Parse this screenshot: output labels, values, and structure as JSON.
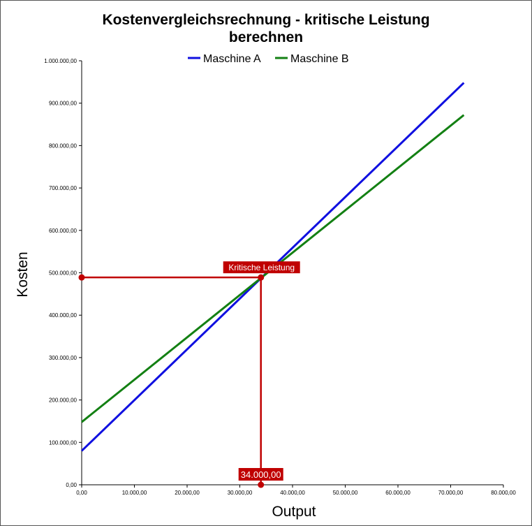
{
  "chart_data": {
    "type": "line",
    "title_line1": "Kostenvergleichsrechnung - kritische Leistung",
    "title_line2": "berechnen",
    "xlabel": "Output",
    "ylabel": "Kosten",
    "xlim": [
      0,
      80000
    ],
    "ylim": [
      0,
      1000000
    ],
    "x_ticks": [
      0,
      10000,
      20000,
      30000,
      40000,
      50000,
      60000,
      70000,
      80000
    ],
    "y_ticks": [
      0,
      100000,
      200000,
      300000,
      400000,
      500000,
      600000,
      700000,
      800000,
      900000,
      1000000
    ],
    "x_tick_labels": [
      "0,00",
      "10.000,00",
      "20.000,00",
      "30.000,00",
      "40.000,00",
      "50.000,00",
      "60.000,00",
      "70.000,00",
      "80.000,00"
    ],
    "y_tick_labels": [
      "0,00",
      "100.000,00",
      "200.000,00",
      "300.000,00",
      "400.000,00",
      "500.000,00",
      "600.000,00",
      "700.000,00",
      "800.000,00",
      "900.000,00",
      "1.000.000,00"
    ],
    "grid": false,
    "legend": "top-center",
    "series": [
      {
        "name": "Maschine A",
        "color": "#1010e0",
        "x": [
          0,
          72500
        ],
        "y": [
          80000,
          948000
        ]
      },
      {
        "name": "Maschine B",
        "color": "#138013",
        "x": [
          0,
          72500
        ],
        "y": [
          148000,
          872000
        ]
      }
    ],
    "annotation": {
      "color": "#c00000",
      "x": 34000,
      "y": 489000,
      "point_label": "Kritische Leistung",
      "x_value_label": "34.000,00"
    }
  }
}
